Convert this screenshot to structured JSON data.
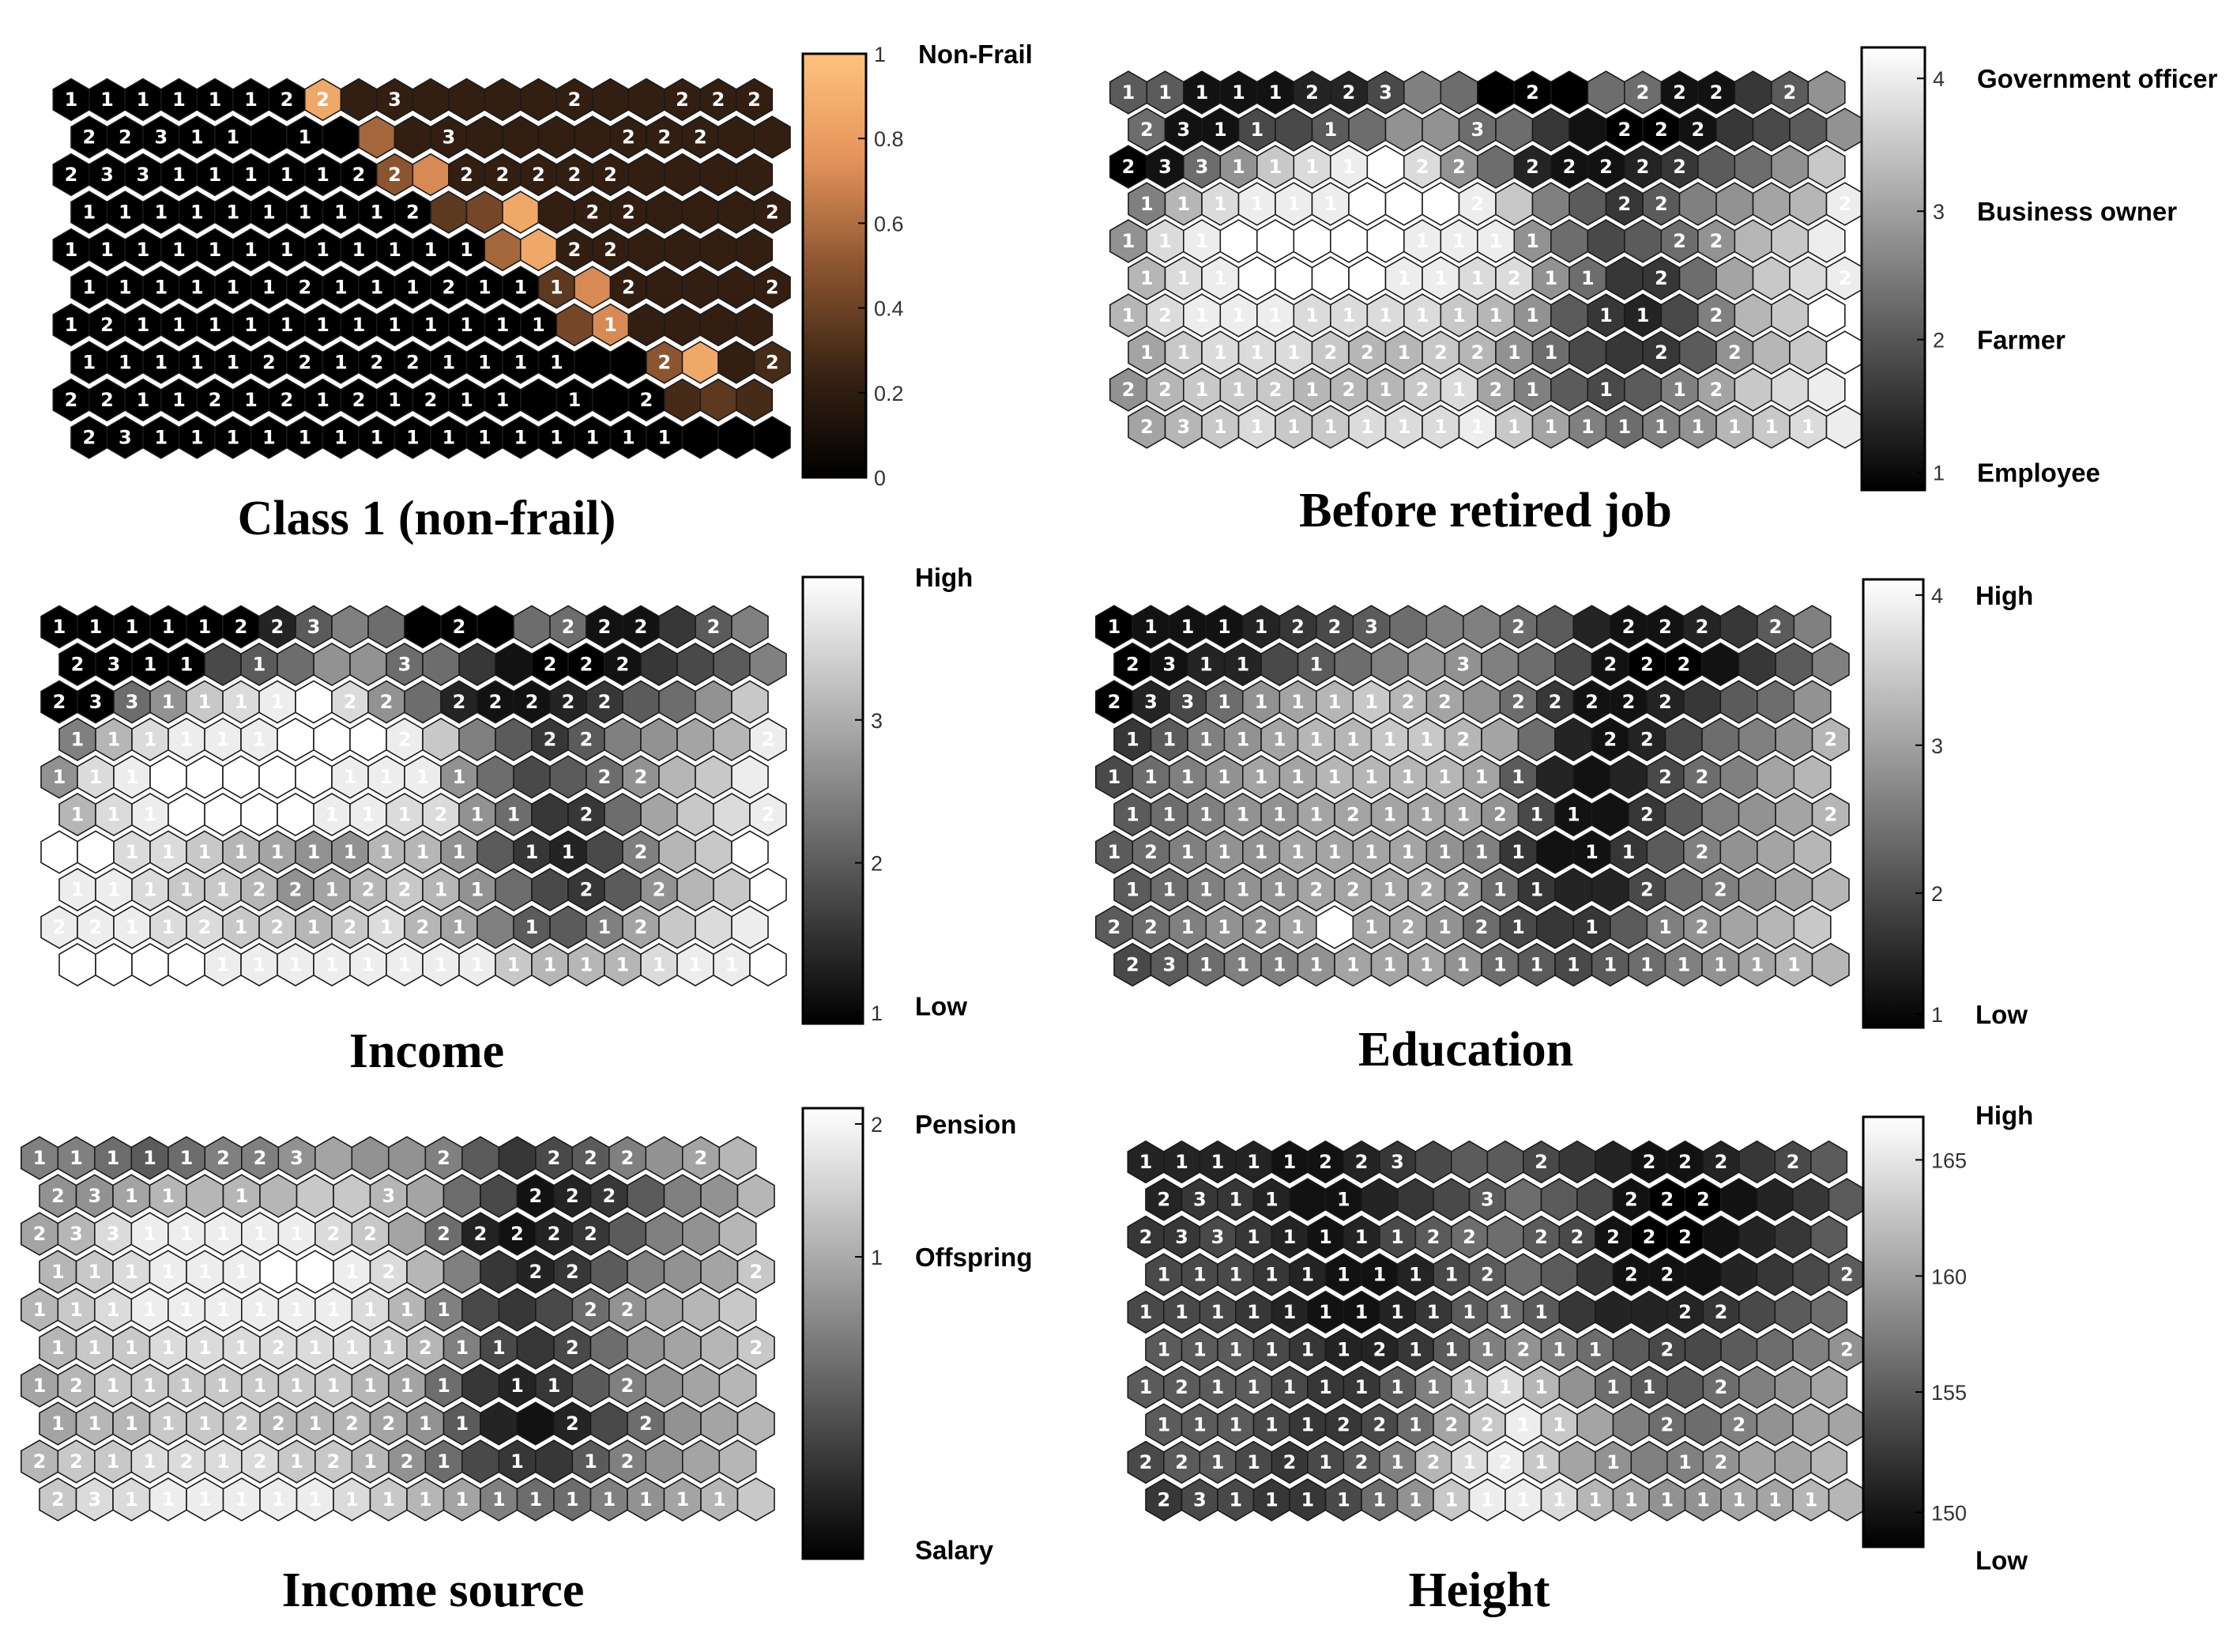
{
  "chart_data": [
    {
      "type": "heatmap",
      "title": "Class 1 (non-frail)",
      "colormap": "copper",
      "colorbar": {
        "range": [
          0,
          1
        ],
        "ticks": [
          "1",
          "0.8",
          "0.6",
          "0.4",
          "0.2",
          "0"
        ],
        "category_labels": [
          "Non-Frail"
        ]
      },
      "rows": [
        "AAAAAAAMDDDDDDDDDDDD",
        "AAAAAAAAIDDDDDDDDDDD",
        "AAAAAAAAAHKDDDDDDDDD",
        "AAAAAAAAAAFGMDDDDDDD",
        "AAAAAAAAAAAAIMDDDDDD",
        "AAAAAAAAAAAAAFKDDDDD",
        "AAAAAAAAAAAAAAGKDDDD",
        "AAAAAAAAAAAAAAAAHMDE",
        "AAAAAAAAAAAAAAAAAEFE",
        "AAAAAAAAAAAAAAAAAAAA"
      ],
      "labels": [
        "11111122_3____2__222",
        "22311_1___3____222__",
        "2331111122_22222____",
        "1111111112____22___2",
        "111111111111__22____",
        "11111121112111_2___2",
        "12111111111111_1____",
        "11111221221111__2__2",
        "2211212121211_1_2___",
        "23111111111111111___"
      ]
    },
    {
      "type": "heatmap",
      "title": "Before retired job",
      "colormap": "gray",
      "colorbar": {
        "range": [
          1,
          4
        ],
        "ticks": [
          "4",
          "3",
          "2",
          "1"
        ],
        "category_labels": [
          "Government officer",
          "Business owner",
          "Farmer",
          "Employee"
        ]
      },
      "rows": [
        "FFBBBCCEHGAAAGGBBDFI",
        "GBBEEFGIIGGDBAABDEFI",
        "ABGILMNOMIGCBBCDFGIL",
        "HKMNNNOOONLHFDFHIJKN",
        "IMNOOOOONNNIGEFGIKLN",
        "KMNOOOONNMMIGDDGJLMN",
        "KMNNNMMMMLKIFDCEHKLO",
        "JLMMMLKKLKIGEDDFIKLO",
        "IKLLLKKKLMJHFEFHJLMN",
        "JKLMLLMMMNLJHGHIKLMN"
      ],
      "labels": [
        "11111223___2__222_2_",
        "2311_1___3___222____",
        "2331111122_22222____",
        "1111111112___22____2",
        "111111111111___22___",
        "1111112111211_2____2",
        "121111111111_11_2___",
        "111112212211__2_2___",
        "221121212121_1_12___",
        "2311111111111111111_"
      ]
    },
    {
      "type": "heatmap",
      "title": "Income",
      "colormap": "gray",
      "colorbar": {
        "range": [
          1,
          3.8
        ],
        "ticks": [
          "3",
          "2",
          "1"
        ],
        "category_labels": [
          "High",
          "Low"
        ]
      },
      "rows": [
        "AAAAAACFHGAAAGGBBDFH",
        "AAAAEFGIIGGDBAABDEFH",
        "AAGILMNOMIGCBBCDFGIL",
        "HKMNNNOOONLHFDFHIJKN",
        "IMNOOOOONNNIGEFGIKLN",
        "KMNOOOONNMMIGDDGJLMN",
        "OOMMLKJIIKKIFDCEHKLO",
        "NNMLLKIJKLKIGEDFIKLO",
        "NNNMMLLKLMKJHFFHJLMN",
        "OOOONNNNNNNNLKKKMNNO"
      ],
      "labels": [
        "11111223___2__222_2_",
        "2311_1___3___222____",
        "2331111122_22222____",
        "1111111112___22____2",
        "111111111111___22___",
        "1111112111211_2____2",
        "121111111111_11_2___",
        "111112212211__2_2___",
        "221121212121_1_12___",
        "2311111111111111111_"
      ]
    },
    {
      "type": "heatmap",
      "title": "Education",
      "colormap": "gray",
      "colorbar": {
        "range": [
          1,
          4
        ],
        "ticks": [
          "4",
          "3",
          "2",
          "1"
        ],
        "category_labels": [
          "High",
          "Low"
        ]
      },
      "rows": [
        "ABBBCDEFGHHGFCBBCDFH",
        "ABCCEFGHIIHGEBAABDFH",
        "ACEGIJKLKJIGDBBCDFGI",
        "DFHIJKKLLKJGCBCEGHIK",
        "EGHIJJKKKKJFCBCEGHJK",
        "FGHIIJJJJJIEBBDFHIJK",
        "FGHIIJJJJIHDBBDFHIJK",
        "FGHIIJJJJIGDCCEGHIJK",
        "FGHIIJOJJIGEDDFHIJKL",
        "EFGHHIJJJIGFEFGHIJKK"
      ],
      "labels": [
        "11111223___2__222_2_",
        "2311_1___3___222____",
        "2331111122_22222____",
        "1111111112___22____2",
        "111111111111___22___",
        "1111112111211_2____2",
        "121111111111_11_2___",
        "111112212211__2_2___",
        "221121212121_1_12___",
        "2311111111111111111_"
      ]
    },
    {
      "type": "heatmap",
      "title": "Income source",
      "colormap": "gray",
      "colorbar": {
        "range": [
          -0.5,
          2.1
        ],
        "ticks": [
          "2",
          "1"
        ],
        "category_labels": [
          "Pension",
          "Offspring",
          "Salary"
        ]
      },
      "rows": [
        "HHGFGHHIJIIHFDEFHIJK",
        "IIJKKKKLLKJGEBCDFHIK",
        "JKMNNNNNMLJGCBCDFHIK",
        "KLMNNNOONMKHDCDFHIJL",
        "KLMNNNNNNMKHEDEGIJKL",
        "KLLMMMMMMLKHEDEGIJKL",
        "JKLLLLLLLKJGDCDFHIJK",
        "JKKLLLKKKJIFCBCEGIJK",
        "KLLMMMMLLKIGEDDFHIJK",
        "LMMNNNNNMLKJHGGHIJKL"
      ],
      "labels": [
        "11111223___2__222_2_",
        "2311_1___3___222____",
        "2331111122_22222____",
        "1111111112___22____2",
        "111111111111___22___",
        "1111112111211_2____2",
        "121111111111_11_2___",
        "111112212211__2_2___",
        "221121212121_1_12___",
        "2311111111111111111_"
      ]
    },
    {
      "type": "heatmap",
      "title": "Height",
      "colormap": "gray",
      "colorbar": {
        "range": [
          147.5,
          166.5
        ],
        "ticks": [
          "165",
          "160",
          "155",
          "150"
        ],
        "category_labels": [
          "High",
          "Low"
        ]
      },
      "rows": [
        "CCCCBBCDEFFEDCBBCDEF",
        "CDDCBBCDEFGFEBAABCDF",
        "DDEDCBCEFGGFEBAABCDF",
        "EEEDCBBCEFGFDBBBCDEF",
        "EEEDCBBCDFGFDCCCDEFG",
        "FFFEDCCDFHIHGFEEFGHI",
        "FFFFEDDFHKMKIGFFGHIJ",
        "FFFEDDEGJLNLJHGGHIJJ",
        "EFFEDEFHKMNLJIHHIJJK",
        "DEEDDEGILNNMKJIIJJKK"
      ],
      "labels": [
        "11111223___2__222_2_",
        "2311_1___3___222____",
        "2331111122_22222____",
        "1111111112___22____2",
        "111111111111___22___",
        "1111112111211_2____2",
        "121111111111_11_2___",
        "111112212211__2_2___",
        "221121212121_1_12___",
        "2311111111111111111_"
      ]
    }
  ]
}
